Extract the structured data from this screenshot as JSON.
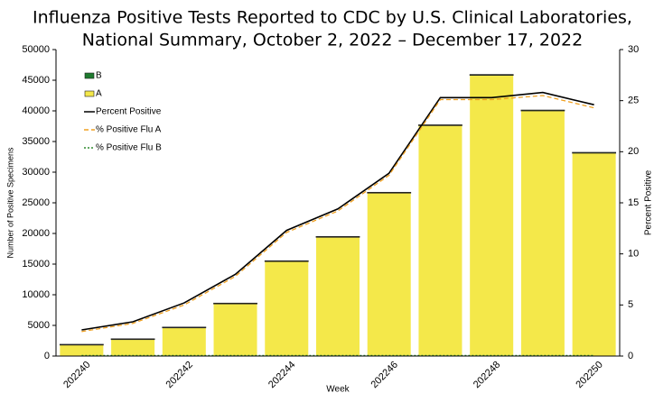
{
  "chart_data": {
    "type": "bar",
    "title": [
      "Influenza Positive Tests Reported to CDC by U.S. Clinical Laboratories,",
      "National Summary, October 2, 2022 – December 17, 2022"
    ],
    "x_label": "Week",
    "y_label": "Number of Positive Specimens",
    "y2_label": "Percent Positive",
    "categories": [
      "202240",
      null,
      "202242",
      null,
      "202244",
      null,
      "202246",
      null,
      "202248",
      null,
      "202250"
    ],
    "series": [
      {
        "name": "B",
        "color": "#1e7a2e",
        "kind": "bar",
        "values": [
          60,
          60,
          70,
          80,
          90,
          100,
          110,
          120,
          130,
          130,
          130
        ]
      },
      {
        "name": "A",
        "color": "#f4e84a",
        "kind": "bar",
        "values": [
          1850,
          2750,
          4650,
          8550,
          15450,
          19400,
          26600,
          37600,
          45800,
          40000,
          33100
        ]
      },
      {
        "name": "Percent Positive",
        "color": "#000000",
        "kind": "line",
        "style": "solid",
        "axis": "y2",
        "values": [
          2.56,
          3.35,
          5.2,
          8.0,
          12.3,
          14.4,
          17.9,
          25.3,
          25.3,
          25.8,
          24.6
        ]
      },
      {
        "name": "% Positive Flu A",
        "color": "#f0a020",
        "kind": "line",
        "style": "dashed",
        "axis": "y2",
        "values": [
          2.4,
          3.2,
          5.0,
          7.8,
          12.1,
          14.2,
          17.7,
          25.1,
          25.1,
          25.5,
          24.3
        ]
      },
      {
        "name": "% Positive Flu B",
        "color": "#2e8b2e",
        "kind": "line",
        "style": "dotted",
        "axis": "y2",
        "values": [
          0.05,
          0.05,
          0.05,
          0.05,
          0.05,
          0.05,
          0.05,
          0.05,
          0.05,
          0.05,
          0.05
        ]
      }
    ],
    "ylim": [
      0,
      50000
    ],
    "yticks": [
      0,
      5000,
      10000,
      15000,
      20000,
      25000,
      30000,
      35000,
      40000,
      45000,
      50000
    ],
    "y2lim": [
      0,
      30
    ],
    "y2ticks": [
      0,
      5,
      10,
      15,
      20,
      25,
      30
    ],
    "legend": "upper-left"
  }
}
